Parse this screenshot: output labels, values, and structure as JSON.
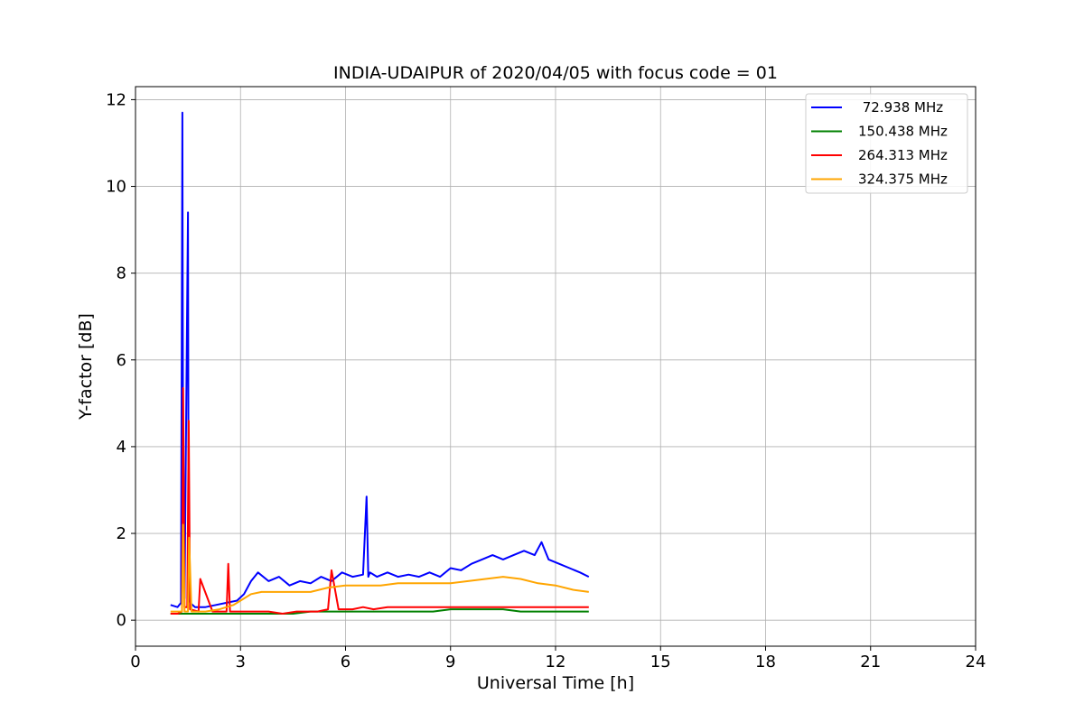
{
  "chart_data": {
    "type": "line",
    "title": "INDIA-UDAIPUR of 2020/04/05 with focus code = 01",
    "xlabel": "Universal Time [h]",
    "ylabel": "Y-factor [dB]",
    "xlim": [
      0,
      24
    ],
    "ylim": [
      -0.6,
      12.3
    ],
    "xticks": [
      0,
      3,
      6,
      9,
      12,
      15,
      18,
      21,
      24
    ],
    "yticks": [
      0,
      2,
      4,
      6,
      8,
      10,
      12
    ],
    "grid": true,
    "legend_position": "top-right",
    "series": [
      {
        "name": " 72.938 MHz",
        "color": "#0000ff",
        "x": [
          1.0,
          1.2,
          1.3,
          1.34,
          1.36,
          1.4,
          1.5,
          1.52,
          1.56,
          1.7,
          2.0,
          2.3,
          2.6,
          2.9,
          3.1,
          3.3,
          3.5,
          3.8,
          4.1,
          4.4,
          4.7,
          5.0,
          5.3,
          5.6,
          5.9,
          6.2,
          6.5,
          6.6,
          6.65,
          6.7,
          6.9,
          7.2,
          7.5,
          7.8,
          8.1,
          8.4,
          8.7,
          9.0,
          9.3,
          9.6,
          9.9,
          10.2,
          10.5,
          10.8,
          11.1,
          11.4,
          11.6,
          11.8,
          12.1,
          12.4,
          12.7,
          12.95
        ],
        "y": [
          0.35,
          0.3,
          0.4,
          11.7,
          3.0,
          0.5,
          9.4,
          0.5,
          0.4,
          0.3,
          0.3,
          0.35,
          0.4,
          0.45,
          0.6,
          0.9,
          1.1,
          0.9,
          1.0,
          0.8,
          0.9,
          0.85,
          1.0,
          0.9,
          1.1,
          1.0,
          1.05,
          2.85,
          1.0,
          1.1,
          1.0,
          1.1,
          1.0,
          1.05,
          1.0,
          1.1,
          1.0,
          1.2,
          1.15,
          1.3,
          1.4,
          1.5,
          1.4,
          1.5,
          1.6,
          1.5,
          1.8,
          1.4,
          1.3,
          1.2,
          1.1,
          1.0
        ]
      },
      {
        "name": "150.438 MHz",
        "color": "#008000",
        "x": [
          1.0,
          1.5,
          2.0,
          2.5,
          3.0,
          3.5,
          4.0,
          4.5,
          5.0,
          5.5,
          6.0,
          6.5,
          7.0,
          7.5,
          8.0,
          8.5,
          9.0,
          9.5,
          10.0,
          10.5,
          11.0,
          11.5,
          12.0,
          12.5,
          12.95
        ],
        "y": [
          0.15,
          0.15,
          0.15,
          0.15,
          0.15,
          0.15,
          0.15,
          0.15,
          0.2,
          0.2,
          0.2,
          0.2,
          0.2,
          0.2,
          0.2,
          0.2,
          0.25,
          0.25,
          0.25,
          0.25,
          0.2,
          0.2,
          0.2,
          0.2,
          0.2
        ]
      },
      {
        "name": "264.313 MHz",
        "color": "#ff0000",
        "x": [
          1.0,
          1.2,
          1.33,
          1.36,
          1.4,
          1.48,
          1.52,
          1.56,
          1.8,
          1.85,
          2.2,
          2.6,
          2.65,
          2.7,
          2.9,
          3.3,
          3.8,
          4.2,
          4.6,
          4.9,
          5.2,
          5.5,
          5.6,
          5.8,
          6.2,
          6.5,
          6.8,
          7.2,
          7.6,
          8.0,
          8.4,
          8.9,
          9.2,
          9.6,
          10.0,
          10.4,
          10.8,
          11.2,
          11.6,
          12.0,
          12.4,
          12.95
        ],
        "y": [
          0.15,
          0.15,
          0.2,
          5.35,
          0.3,
          0.3,
          4.6,
          0.25,
          0.2,
          0.95,
          0.2,
          0.2,
          1.3,
          0.2,
          0.2,
          0.2,
          0.2,
          0.15,
          0.2,
          0.2,
          0.2,
          0.25,
          1.15,
          0.25,
          0.25,
          0.3,
          0.25,
          0.3,
          0.3,
          0.3,
          0.3,
          0.3,
          0.3,
          0.3,
          0.3,
          0.3,
          0.3,
          0.3,
          0.3,
          0.3,
          0.3,
          0.3
        ]
      },
      {
        "name": "324.375 MHz",
        "color": "#ffa500",
        "x": [
          1.0,
          1.2,
          1.33,
          1.36,
          1.4,
          1.5,
          1.53,
          1.6,
          2.0,
          2.4,
          2.8,
          3.0,
          3.3,
          3.6,
          4.0,
          4.5,
          5.0,
          5.5,
          6.0,
          6.5,
          7.0,
          7.5,
          8.0,
          8.5,
          9.0,
          9.5,
          10.0,
          10.5,
          11.0,
          11.5,
          12.0,
          12.5,
          12.95
        ],
        "y": [
          0.2,
          0.2,
          0.2,
          2.2,
          0.2,
          0.2,
          1.9,
          0.2,
          0.2,
          0.25,
          0.35,
          0.45,
          0.6,
          0.65,
          0.65,
          0.65,
          0.65,
          0.75,
          0.8,
          0.8,
          0.8,
          0.85,
          0.85,
          0.85,
          0.85,
          0.9,
          0.95,
          1.0,
          0.95,
          0.85,
          0.8,
          0.7,
          0.65
        ]
      }
    ]
  }
}
